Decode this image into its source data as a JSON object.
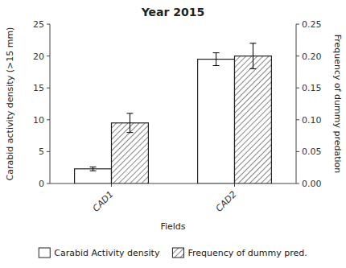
{
  "chart_data": {
    "type": "bar",
    "title": "Year 2015",
    "xlabel": "Fields",
    "ylabel": "Carabid activity density (>15 mm)",
    "y2label": "Frequency of dummy predation",
    "categories": [
      "CAD1",
      "CAD2"
    ],
    "series": [
      {
        "name": "Carabid Activity density",
        "color": "#ffffff",
        "values": [
          2.3,
          19.5
        ],
        "errors": [
          0.3,
          1.0
        ]
      },
      {
        "name": "Frequency of dummy pred.",
        "color": "#ffffff",
        "values": [
          9.5,
          20.0
        ],
        "errors": [
          1.5,
          2.0
        ]
      }
    ],
    "ylim": [
      0,
      25
    ],
    "yticks": [
      0,
      5,
      10,
      15,
      20,
      25
    ],
    "y2lim": [
      0,
      0.25
    ],
    "y2ticks": [
      {
        "value": 0,
        "label": "0.00"
      },
      {
        "value": 0.05,
        "label": "0.05"
      },
      {
        "value": 0.1,
        "label": "0.10"
      },
      {
        "value": 0.15,
        "label": "0.15"
      },
      {
        "value": 0.2,
        "label": "0.20"
      },
      {
        "value": 0.25,
        "label": "0.25"
      }
    ],
    "grid": false,
    "legend": "bottom"
  }
}
